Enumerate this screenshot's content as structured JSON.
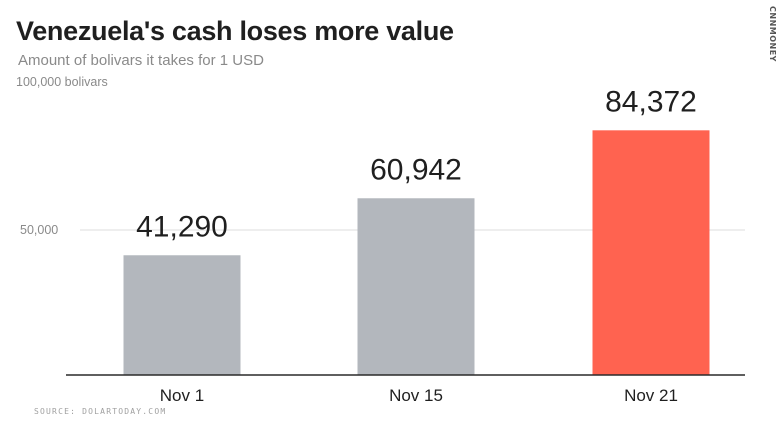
{
  "header": {
    "title": "Venezuela's cash loses more value",
    "subtitle": "Amount of bolivars it takes for 1 USD"
  },
  "brand": {
    "label": "CNNMONEY"
  },
  "footer": {
    "source": "SOURCE: DOLARTODAY.COM"
  },
  "colors": {
    "bar_default": "#b3b7bd",
    "bar_highlight": "#ff6350",
    "grid": "#dddddd",
    "axis": "#2a2a2a"
  },
  "chart_data": {
    "type": "bar",
    "title": "Venezuela's cash loses more value",
    "subtitle": "Amount of bolivars it takes for 1 USD",
    "categories": [
      "Nov 1",
      "Nov 15",
      "Nov 21"
    ],
    "values": [
      41290,
      60942,
      84372
    ],
    "value_labels": [
      "41,290",
      "60,942",
      "84,372"
    ],
    "highlight_index": 2,
    "ylim": [
      0,
      100000
    ],
    "yticks": [
      {
        "value": 50000,
        "label": "50,000"
      },
      {
        "value": 100000,
        "label": "100,000 bolivars"
      }
    ],
    "grid": true,
    "legend": "none"
  }
}
